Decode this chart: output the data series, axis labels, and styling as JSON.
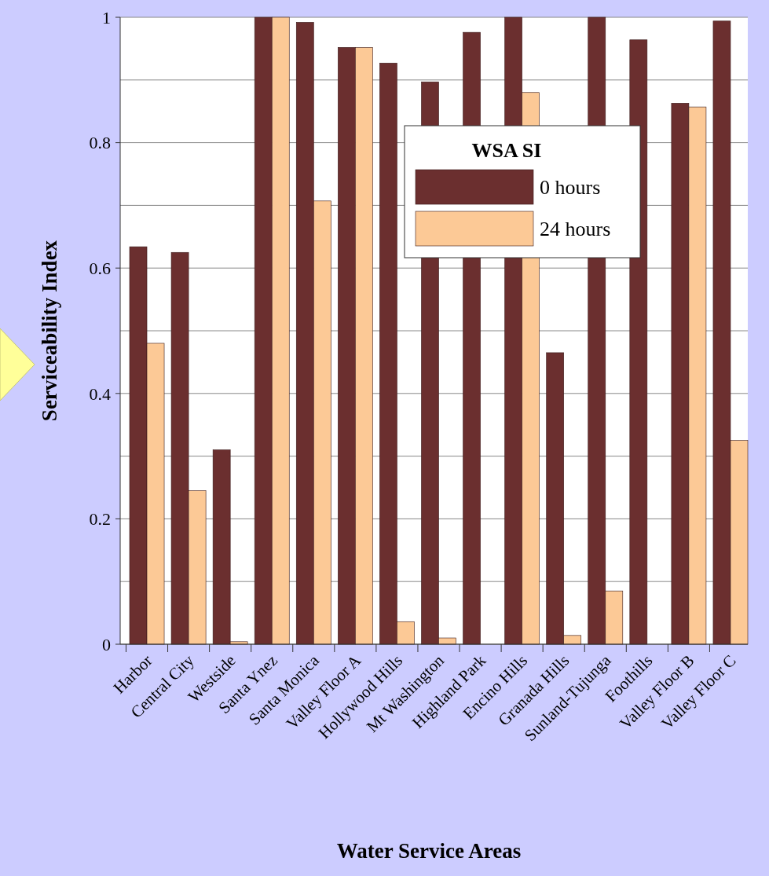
{
  "chart_data": {
    "type": "bar",
    "xlabel": "Water Service Areas",
    "ylabel": "Serviceability Index",
    "legend_title": "WSA SI",
    "categories": [
      "Harbor",
      "Central City",
      "Westside",
      "Santa Ynez",
      "Santa Monica",
      "Valley Floor A",
      "Hollywood Hills",
      "Mt Washington",
      "Highland Park",
      "Encino Hills",
      "Granada Hills",
      "Sunland-Tujunga",
      "Foothills",
      "Valley Floor B",
      "Valley Floor C"
    ],
    "series": [
      {
        "name": "0 hours",
        "color": "#6b2f2f",
        "values": [
          0.634,
          0.625,
          0.31,
          1,
          0.992,
          0.952,
          0.927,
          0.897,
          0.976,
          1,
          0.465,
          1,
          0.964,
          0.863,
          0.994
        ]
      },
      {
        "name": "24 hours",
        "color": "#fcc996",
        "values": [
          0.48,
          0.245,
          0.004,
          1,
          0.707,
          0.952,
          0.036,
          0.01,
          0,
          0.88,
          0.014,
          0.085,
          0,
          0.857,
          0.325
        ]
      }
    ],
    "ylim": [
      0,
      1
    ],
    "yticks": [
      0,
      {
        "value": 0.1,
        "label": null
      },
      0.2,
      {
        "value": 0.3,
        "label": null
      },
      0.4,
      {
        "value": 0.5,
        "label": null
      },
      0.6,
      {
        "value": 0.7,
        "label": null
      },
      0.8,
      {
        "value": 0.9,
        "label": null
      },
      1
    ],
    "grid": "y",
    "legend": "top right"
  }
}
